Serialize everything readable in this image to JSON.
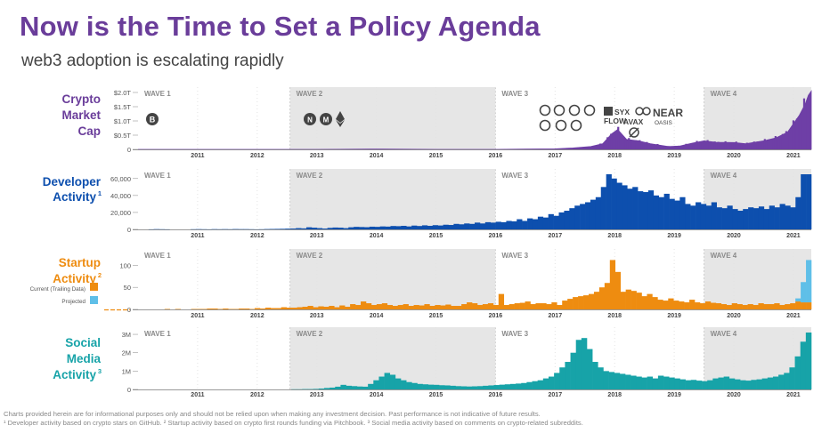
{
  "page": {
    "title": "Now is the Time to Set a Policy Agenda",
    "subtitle": "web3 adoption is escalating rapidly",
    "footer": [
      "Charts provided herein are for informational purposes only and should not be relied upon when making any investment decision. Past performance is not indicative of future results.",
      "¹ Developer activity based on crypto stars on GitHub. ² Startup activity based on crypto first rounds funding via Pitchbook. ³ Social media activity based on comments on crypto-related subreddits."
    ]
  },
  "colors": {
    "title": "#6a3d9a",
    "market": "#6e3fa6",
    "developer": "#0d4fae",
    "startup": "#ee8c10",
    "projected": "#5fbfe8",
    "social": "#17a3a8",
    "wave_shade": "#e6e6e6"
  },
  "chart_data": [
    {
      "type": "area",
      "id": "market",
      "title": "Crypto Market Cap",
      "ylabel": "Crypto Market Cap",
      "x_start": 2010.0,
      "x_end": 2021.3,
      "ylim": [
        0,
        2.0
      ],
      "yticks": [
        0,
        0.5,
        1.0,
        1.5,
        2.0
      ],
      "ytick_labels": [
        "0",
        "$0.5T",
        "$1.0T",
        "$1.5T",
        "$2.0T"
      ],
      "xticks": [
        "2011",
        "2012",
        "2013",
        "2014",
        "2015",
        "2016",
        "2017",
        "2018",
        "2019",
        "2020",
        "2021"
      ],
      "waves": [
        "WAVE 1",
        "WAVE 2",
        "WAVE 3",
        "WAVE 4"
      ],
      "x": [
        2010.0,
        2013.0,
        2013.9,
        2014.1,
        2015.0,
        2016.0,
        2016.5,
        2017.0,
        2017.3,
        2017.6,
        2017.8,
        2017.95,
        2018.05,
        2018.2,
        2018.4,
        2018.6,
        2018.9,
        2019.1,
        2019.3,
        2019.5,
        2019.7,
        2020.0,
        2020.2,
        2020.5,
        2020.7,
        2020.9,
        2021.0,
        2021.1,
        2021.2,
        2021.25,
        2021.3
      ],
      "values": [
        0,
        0.0,
        0.01,
        0.01,
        0.0,
        0.0,
        0.01,
        0.02,
        0.05,
        0.1,
        0.2,
        0.55,
        0.7,
        0.35,
        0.3,
        0.2,
        0.1,
        0.12,
        0.22,
        0.3,
        0.25,
        0.24,
        0.2,
        0.3,
        0.4,
        0.6,
        0.9,
        1.2,
        1.6,
        1.9,
        2.05
      ],
      "annotations": [
        "B",
        "N",
        "M",
        "E",
        "FLOW",
        "AVAX",
        "OASIS",
        "NEAR",
        "SYX"
      ]
    },
    {
      "type": "bar",
      "id": "developer",
      "title": "Developer Activity¹",
      "ylabel": "Developer Activity",
      "ylim": [
        0,
        65000
      ],
      "yticks": [
        0,
        20000,
        40000,
        60000
      ],
      "ytick_labels": [
        "0",
        "20,000",
        "40,000",
        "60,000"
      ],
      "xticks": [
        "2011",
        "2012",
        "2013",
        "2014",
        "2015",
        "2016",
        "2017",
        "2018",
        "2019",
        "2020",
        "2021"
      ],
      "waves": [
        "WAVE 1",
        "WAVE 2",
        "WAVE 3",
        "WAVE 4"
      ],
      "values": [
        0,
        0,
        100,
        300,
        200,
        100,
        0,
        0,
        0,
        0,
        200,
        300,
        200,
        100,
        300,
        200,
        300,
        200,
        400,
        300,
        300,
        200,
        100,
        200,
        400,
        500,
        600,
        700,
        900,
        1000,
        1500,
        1200,
        2500,
        2000,
        1500,
        1000,
        1800,
        2200,
        2000,
        1500,
        2500,
        3000,
        2800,
        2600,
        3200,
        3000,
        3500,
        3300,
        4000,
        3800,
        4200,
        3500,
        4500,
        4000,
        4800,
        4200,
        5000,
        4600,
        5500,
        5200,
        6500,
        6000,
        7000,
        6500,
        8000,
        7000,
        8500,
        8000,
        9000,
        8500,
        10000,
        9500,
        12000,
        10000,
        13000,
        12000,
        15000,
        14000,
        18000,
        16000,
        20000,
        22000,
        25000,
        28000,
        30000,
        32000,
        35000,
        38000,
        50000,
        65000,
        60000,
        55000,
        52000,
        48000,
        50000,
        45000,
        44000,
        46000,
        40000,
        38000,
        42000,
        36000,
        34000,
        38000,
        30000,
        28000,
        32000,
        30000,
        28000,
        32000,
        26000,
        25000,
        28000,
        24000,
        22000,
        24000,
        26000,
        25000,
        27000,
        24000,
        28000,
        26000,
        30000,
        28000,
        26000,
        38000,
        65000,
        65000
      ]
    },
    {
      "type": "bar",
      "id": "startup",
      "title": "Startup Activity²",
      "ylabel": "Startup Activity",
      "ylim": [
        0,
        125
      ],
      "yticks": [
        0,
        50,
        100
      ],
      "ytick_labels": [
        "0",
        "50",
        "100"
      ],
      "xticks": [
        "2011",
        "2012",
        "2013",
        "2014",
        "2015",
        "2016",
        "2017",
        "2018",
        "2019",
        "2020",
        "2021"
      ],
      "waves": [
        "WAVE 1",
        "WAVE 2",
        "WAVE 3",
        "WAVE 4"
      ],
      "legend": [
        "Current (Trailing Data)",
        "Projected"
      ],
      "series": [
        {
          "name": "Current (Trailing Data)",
          "values": [
            0,
            0,
            0,
            0,
            0,
            1,
            0,
            1,
            0,
            0,
            1,
            1,
            1,
            2,
            2,
            1,
            2,
            1,
            1,
            2,
            2,
            1,
            3,
            2,
            4,
            3,
            3,
            5,
            4,
            4,
            5,
            6,
            8,
            5,
            7,
            6,
            8,
            5,
            9,
            6,
            12,
            10,
            18,
            14,
            10,
            12,
            14,
            10,
            8,
            10,
            12,
            8,
            10,
            9,
            12,
            8,
            10,
            9,
            11,
            8,
            8,
            12,
            16,
            14,
            10,
            12,
            14,
            10,
            35,
            10,
            12,
            14,
            15,
            18,
            12,
            14,
            14,
            12,
            16,
            10,
            20,
            24,
            28,
            30,
            32,
            35,
            40,
            50,
            60,
            112,
            85,
            40,
            45,
            42,
            38,
            30,
            35,
            28,
            22,
            20,
            25,
            20,
            18,
            16,
            22,
            16,
            14,
            18,
            15,
            14,
            12,
            10,
            14,
            12,
            10,
            12,
            10,
            14,
            12,
            12,
            14,
            10,
            12,
            14,
            18,
            16,
            16
          ]
        },
        {
          "name": "Projected",
          "values": [
            0,
            0,
            0,
            0,
            0,
            0,
            0,
            0,
            0,
            0,
            0,
            0,
            0,
            0,
            0,
            0,
            0,
            0,
            0,
            0,
            0,
            0,
            0,
            0,
            0,
            0,
            0,
            0,
            0,
            0,
            0,
            0,
            0,
            0,
            0,
            0,
            0,
            0,
            0,
            0,
            0,
            0,
            0,
            0,
            0,
            0,
            0,
            0,
            0,
            0,
            0,
            0,
            0,
            0,
            0,
            0,
            0,
            0,
            0,
            0,
            0,
            0,
            0,
            0,
            0,
            0,
            0,
            0,
            0,
            0,
            0,
            0,
            0,
            0,
            0,
            0,
            0,
            0,
            0,
            0,
            0,
            0,
            0,
            0,
            0,
            0,
            0,
            0,
            0,
            0,
            0,
            0,
            0,
            0,
            0,
            0,
            0,
            0,
            0,
            0,
            0,
            0,
            0,
            0,
            0,
            0,
            0,
            0,
            0,
            0,
            0,
            0,
            0,
            0,
            0,
            0,
            0,
            0,
            0,
            0,
            0,
            0,
            0,
            0,
            25,
            62,
            112
          ]
        }
      ]
    },
    {
      "type": "bar",
      "id": "social",
      "title": "Social Media Activity³",
      "ylabel": "Social Media Activity",
      "ylim": [
        0,
        3100000
      ],
      "yticks": [
        0,
        1000000,
        2000000,
        3000000
      ],
      "ytick_labels": [
        "0",
        "1M",
        "2M",
        "3M"
      ],
      "xticks": [
        "2011",
        "2012",
        "2013",
        "2014",
        "2015",
        "2016",
        "2017",
        "2018",
        "2019",
        "2020",
        "2021"
      ],
      "waves": [
        "WAVE 1",
        "WAVE 2",
        "WAVE 3",
        "WAVE 4"
      ],
      "values": [
        0,
        0,
        0,
        0,
        0,
        0,
        0,
        0,
        0,
        0,
        0,
        0,
        0,
        0,
        0,
        0,
        0,
        0,
        0,
        0,
        0,
        0,
        0,
        0,
        0,
        0,
        0,
        0,
        10000,
        10000,
        20000,
        20000,
        30000,
        50000,
        80000,
        100000,
        150000,
        250000,
        200000,
        180000,
        160000,
        150000,
        300000,
        500000,
        700000,
        900000,
        800000,
        600000,
        500000,
        400000,
        350000,
        300000,
        280000,
        260000,
        250000,
        230000,
        220000,
        200000,
        180000,
        170000,
        160000,
        170000,
        180000,
        200000,
        220000,
        240000,
        260000,
        280000,
        300000,
        320000,
        350000,
        400000,
        450000,
        500000,
        600000,
        700000,
        900000,
        1200000,
        1500000,
        2000000,
        2700000,
        2800000,
        2200000,
        1500000,
        1200000,
        1000000,
        950000,
        900000,
        850000,
        800000,
        750000,
        700000,
        650000,
        700000,
        600000,
        750000,
        700000,
        650000,
        600000,
        550000,
        500000,
        520000,
        480000,
        450000,
        500000,
        600000,
        650000,
        700000,
        600000,
        550000,
        500000,
        480000,
        520000,
        550000,
        600000,
        650000,
        700000,
        800000,
        900000,
        1200000,
        1800000,
        2600000,
        3100000
      ]
    }
  ]
}
